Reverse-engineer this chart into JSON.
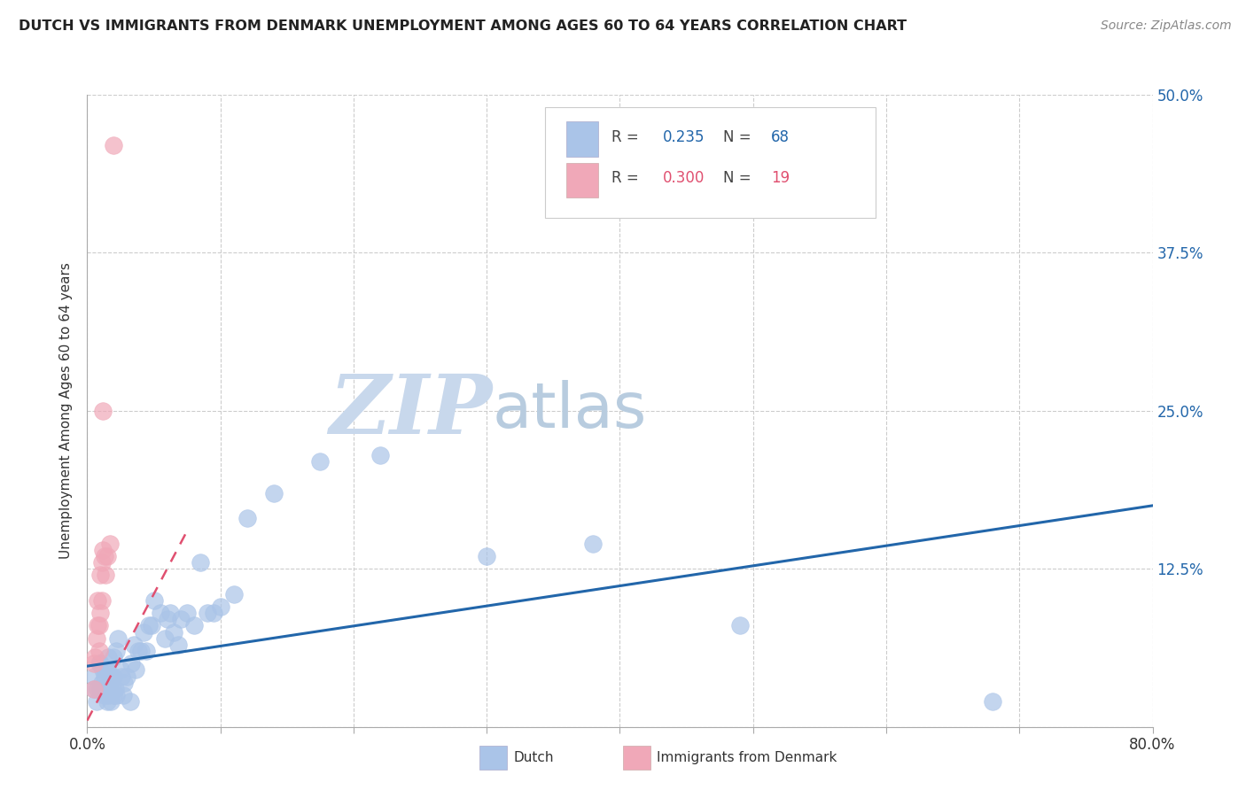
{
  "title": "DUTCH VS IMMIGRANTS FROM DENMARK UNEMPLOYMENT AMONG AGES 60 TO 64 YEARS CORRELATION CHART",
  "source": "Source: ZipAtlas.com",
  "ylabel": "Unemployment Among Ages 60 to 64 years",
  "yticks": [
    0.0,
    0.125,
    0.25,
    0.375,
    0.5
  ],
  "ytick_labels": [
    "",
    "12.5%",
    "25.0%",
    "37.5%",
    "50.0%"
  ],
  "xlim": [
    0.0,
    0.8
  ],
  "ylim": [
    0.0,
    0.5
  ],
  "dutch_R": 0.235,
  "dutch_N": 68,
  "denmark_R": 0.3,
  "denmark_N": 19,
  "dutch_color": "#aac4e8",
  "denmark_color": "#f0a8b8",
  "trendline_dutch_color": "#2266aa",
  "trendline_denmark_color": "#e05070",
  "watermark_zip_color": "#c5d8ee",
  "watermark_atlas_color": "#b8d0e8",
  "dutch_x": [
    0.005,
    0.005,
    0.007,
    0.008,
    0.009,
    0.01,
    0.01,
    0.011,
    0.012,
    0.012,
    0.013,
    0.013,
    0.014,
    0.014,
    0.015,
    0.015,
    0.015,
    0.016,
    0.016,
    0.017,
    0.018,
    0.018,
    0.019,
    0.02,
    0.02,
    0.02,
    0.021,
    0.022,
    0.022,
    0.023,
    0.025,
    0.026,
    0.027,
    0.028,
    0.03,
    0.032,
    0.033,
    0.035,
    0.036,
    0.038,
    0.04,
    0.042,
    0.044,
    0.046,
    0.048,
    0.05,
    0.055,
    0.058,
    0.06,
    0.062,
    0.065,
    0.068,
    0.07,
    0.075,
    0.08,
    0.085,
    0.09,
    0.095,
    0.1,
    0.11,
    0.12,
    0.14,
    0.175,
    0.22,
    0.3,
    0.38,
    0.49,
    0.68
  ],
  "dutch_y": [
    0.03,
    0.04,
    0.02,
    0.03,
    0.05,
    0.03,
    0.05,
    0.035,
    0.045,
    0.03,
    0.025,
    0.04,
    0.03,
    0.045,
    0.02,
    0.03,
    0.045,
    0.025,
    0.055,
    0.035,
    0.02,
    0.04,
    0.03,
    0.025,
    0.04,
    0.055,
    0.03,
    0.025,
    0.06,
    0.07,
    0.045,
    0.04,
    0.025,
    0.035,
    0.04,
    0.02,
    0.05,
    0.065,
    0.045,
    0.06,
    0.06,
    0.075,
    0.06,
    0.08,
    0.08,
    0.1,
    0.09,
    0.07,
    0.085,
    0.09,
    0.075,
    0.065,
    0.085,
    0.09,
    0.08,
    0.13,
    0.09,
    0.09,
    0.095,
    0.105,
    0.165,
    0.185,
    0.21,
    0.215,
    0.135,
    0.145,
    0.08,
    0.02
  ],
  "denmark_x": [
    0.005,
    0.005,
    0.006,
    0.007,
    0.008,
    0.008,
    0.009,
    0.009,
    0.01,
    0.01,
    0.011,
    0.011,
    0.012,
    0.012,
    0.013,
    0.014,
    0.015,
    0.017,
    0.02
  ],
  "denmark_y": [
    0.03,
    0.05,
    0.055,
    0.07,
    0.08,
    0.1,
    0.06,
    0.08,
    0.09,
    0.12,
    0.1,
    0.13,
    0.14,
    0.25,
    0.135,
    0.12,
    0.135,
    0.145,
    0.46
  ],
  "trendline_dutch_x0": 0.0,
  "trendline_dutch_x1": 0.8,
  "trendline_dutch_y0": 0.048,
  "trendline_dutch_y1": 0.175,
  "trendline_dk_x0": 0.0,
  "trendline_dk_x1": 0.075,
  "trendline_dk_y0": 0.005,
  "trendline_dk_y1": 0.155
}
